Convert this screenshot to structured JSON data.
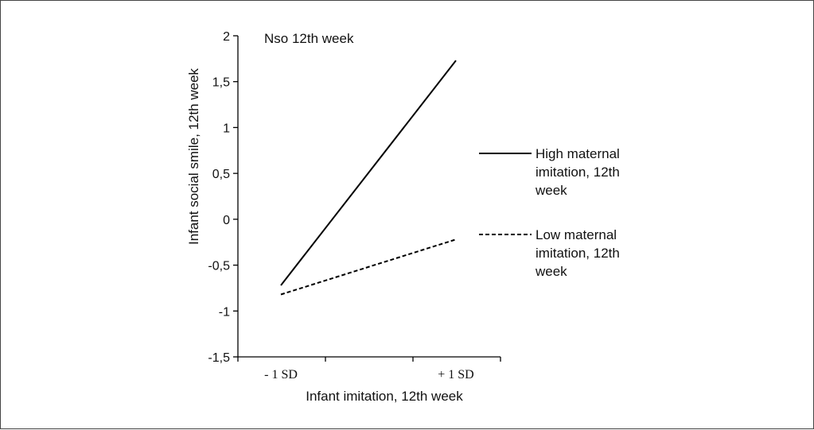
{
  "chart_data": {
    "type": "line",
    "title": "Nso 12th week",
    "xlabel": "Infant imitation, 12th week",
    "ylabel": "Infant social smile, 12th week",
    "categories": [
      "- 1 SD",
      "+ 1 SD"
    ],
    "ylim": [
      -1.5,
      2
    ],
    "yticks": [
      2,
      1.5,
      1,
      0.5,
      0,
      -0.5,
      -1,
      -1.5
    ],
    "ytick_labels": [
      "2",
      "1,5",
      "1",
      "0,5",
      "0",
      "-0,5",
      "-1",
      "-1,5"
    ],
    "grid": false,
    "legend_position": "right",
    "series": [
      {
        "name": "High maternal imitation, 12th week",
        "legend_lines": [
          "High maternal",
          "imitation, 12th",
          "week"
        ],
        "values": [
          -0.72,
          1.73
        ],
        "style": "solid",
        "color": "#000000"
      },
      {
        "name": "Low maternal imitation, 12th week",
        "legend_lines": [
          "Low maternal",
          "imitation, 12th",
          "week"
        ],
        "values": [
          -0.82,
          -0.22
        ],
        "style": "dashed",
        "color": "#000000"
      }
    ]
  }
}
